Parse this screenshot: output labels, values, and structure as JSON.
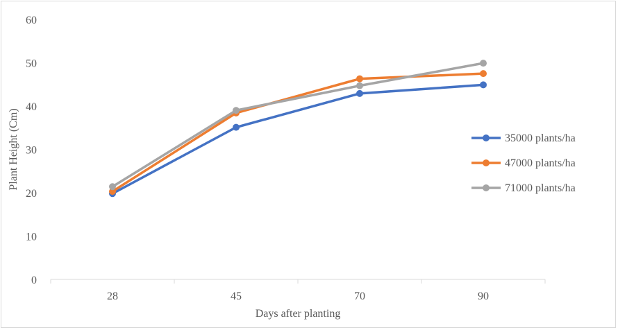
{
  "chart_data": {
    "type": "line",
    "title": "",
    "xlabel": "Days after planting",
    "ylabel": "Plant Height (Cm)",
    "categories": [
      "28",
      "45",
      "70",
      "90"
    ],
    "ylim": [
      0,
      60
    ],
    "yticks": [
      0,
      10,
      20,
      30,
      40,
      50,
      60
    ],
    "grid": false,
    "legend_position": "right",
    "series": [
      {
        "name": "35000 plants/ha",
        "color": "#4472c4",
        "values": [
          19.8,
          35.1,
          42.9,
          44.9
        ]
      },
      {
        "name": "47000 plants/ha",
        "color": "#ed7d31",
        "values": [
          20.3,
          38.4,
          46.3,
          47.5
        ]
      },
      {
        "name": "71000 plants/ha",
        "color": "#a5a5a5",
        "values": [
          21.4,
          39.0,
          44.7,
          49.9
        ]
      }
    ]
  }
}
